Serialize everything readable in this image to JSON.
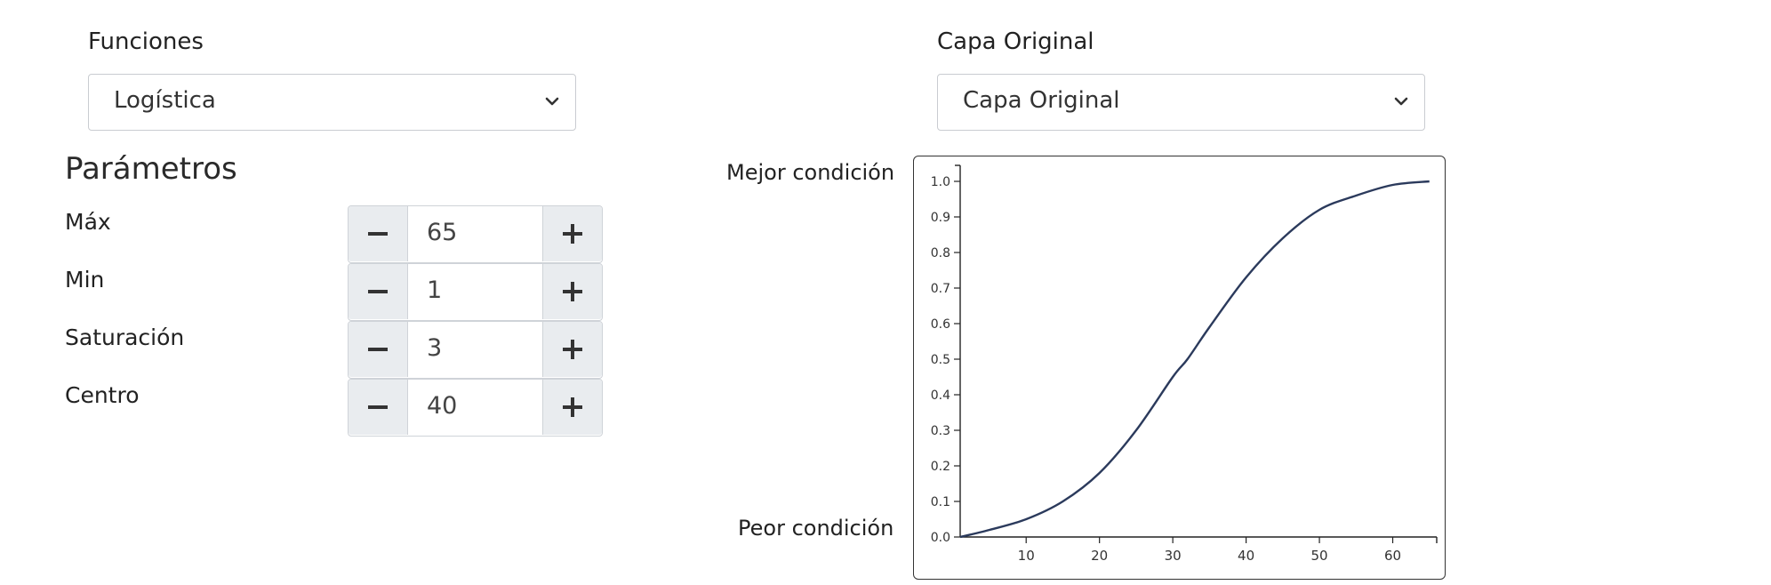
{
  "funciones": {
    "label": "Funciones",
    "selected": "Logística"
  },
  "capa": {
    "label": "Capa Original",
    "selected": "Capa Original"
  },
  "parametros": {
    "title": "Parámetros",
    "items": [
      {
        "label": "Máx",
        "value": "65"
      },
      {
        "label": "Min",
        "value": "1"
      },
      {
        "label": "Saturación",
        "value": "3"
      },
      {
        "label": "Centro",
        "value": "40"
      }
    ]
  },
  "conditions": {
    "best": "Mejor condición",
    "worst": "Peor condición"
  },
  "colors": {
    "curve": "#2b3a5c",
    "button_bg": "#e9ecef"
  },
  "icons": [
    "chevron-down-icon",
    "minus-icon",
    "plus-icon"
  ],
  "chart_data": {
    "type": "line",
    "x_ticks": [
      "10",
      "20",
      "30",
      "40",
      "50",
      "60"
    ],
    "y_ticks": [
      "0.0",
      "0.1",
      "0.2",
      "0.3",
      "0.4",
      "0.5",
      "0.6",
      "0.7",
      "0.8",
      "0.9",
      "1.0"
    ],
    "xlim": [
      1,
      66
    ],
    "ylim": [
      0,
      1
    ],
    "grid": false,
    "x": [
      1,
      5,
      10,
      15,
      20,
      25,
      30,
      32,
      35,
      40,
      45,
      50,
      55,
      60,
      65
    ],
    "y": [
      0.0,
      0.02,
      0.05,
      0.1,
      0.18,
      0.3,
      0.45,
      0.5,
      0.59,
      0.73,
      0.84,
      0.92,
      0.96,
      0.99,
      1.0
    ]
  }
}
